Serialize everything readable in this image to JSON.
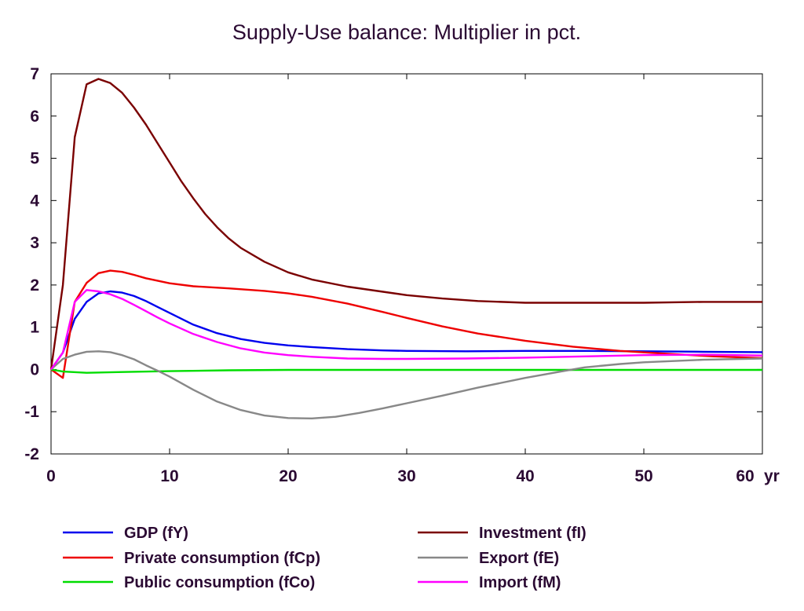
{
  "chart_data": {
    "type": "line",
    "title": "Supply-Use balance: Multiplier in pct.",
    "xlabel": "",
    "ylabel": "",
    "x_unit_label": "yr",
    "xlim": [
      0,
      60
    ],
    "ylim": [
      -2,
      7
    ],
    "x_ticks": [
      0,
      10,
      20,
      30,
      40,
      50,
      60
    ],
    "y_ticks": [
      -2,
      -1,
      0,
      1,
      2,
      3,
      4,
      5,
      6,
      7
    ],
    "grid": false,
    "legend_position": "bottom",
    "series": [
      {
        "name": "GDP (fY)",
        "color": "#0000ee",
        "points": [
          [
            0,
            0
          ],
          [
            1,
            0.4
          ],
          [
            2,
            1.2
          ],
          [
            3,
            1.6
          ],
          [
            4,
            1.8
          ],
          [
            5,
            1.85
          ],
          [
            6,
            1.82
          ],
          [
            7,
            1.74
          ],
          [
            8,
            1.62
          ],
          [
            9,
            1.48
          ],
          [
            10,
            1.34
          ],
          [
            12,
            1.06
          ],
          [
            14,
            0.86
          ],
          [
            16,
            0.72
          ],
          [
            18,
            0.63
          ],
          [
            20,
            0.57
          ],
          [
            22,
            0.53
          ],
          [
            25,
            0.48
          ],
          [
            28,
            0.45
          ],
          [
            30,
            0.44
          ],
          [
            35,
            0.43
          ],
          [
            40,
            0.44
          ],
          [
            45,
            0.44
          ],
          [
            50,
            0.43
          ],
          [
            55,
            0.42
          ],
          [
            60,
            0.41
          ]
        ]
      },
      {
        "name": "Private consumption (fCp)",
        "color": "#ee0000",
        "points": [
          [
            0,
            0
          ],
          [
            1,
            -0.2
          ],
          [
            2,
            1.6
          ],
          [
            3,
            2.05
          ],
          [
            4,
            2.28
          ],
          [
            5,
            2.34
          ],
          [
            6,
            2.31
          ],
          [
            7,
            2.24
          ],
          [
            8,
            2.16
          ],
          [
            10,
            2.04
          ],
          [
            12,
            1.97
          ],
          [
            15,
            1.92
          ],
          [
            18,
            1.86
          ],
          [
            20,
            1.8
          ],
          [
            22,
            1.72
          ],
          [
            25,
            1.56
          ],
          [
            28,
            1.36
          ],
          [
            30,
            1.22
          ],
          [
            33,
            1.02
          ],
          [
            36,
            0.85
          ],
          [
            40,
            0.68
          ],
          [
            44,
            0.54
          ],
          [
            48,
            0.44
          ],
          [
            52,
            0.37
          ],
          [
            56,
            0.31
          ],
          [
            60,
            0.27
          ]
        ]
      },
      {
        "name": "Public consumption (fCo)",
        "color": "#00dd00",
        "points": [
          [
            0,
            0
          ],
          [
            1,
            -0.05
          ],
          [
            3,
            -0.08
          ],
          [
            6,
            -0.06
          ],
          [
            10,
            -0.04
          ],
          [
            15,
            -0.02
          ],
          [
            20,
            -0.01
          ],
          [
            30,
            -0.01
          ],
          [
            40,
            -0.01
          ],
          [
            50,
            -0.01
          ],
          [
            60,
            -0.01
          ]
        ]
      },
      {
        "name": "Investment (fI)",
        "color": "#7a0000",
        "points": [
          [
            0,
            0
          ],
          [
            1,
            2.0
          ],
          [
            2,
            5.5
          ],
          [
            3,
            6.75
          ],
          [
            4,
            6.88
          ],
          [
            5,
            6.78
          ],
          [
            6,
            6.55
          ],
          [
            7,
            6.2
          ],
          [
            8,
            5.8
          ],
          [
            9,
            5.35
          ],
          [
            10,
            4.9
          ],
          [
            11,
            4.45
          ],
          [
            12,
            4.05
          ],
          [
            13,
            3.68
          ],
          [
            14,
            3.37
          ],
          [
            15,
            3.1
          ],
          [
            16,
            2.88
          ],
          [
            18,
            2.55
          ],
          [
            20,
            2.3
          ],
          [
            22,
            2.13
          ],
          [
            25,
            1.96
          ],
          [
            28,
            1.84
          ],
          [
            30,
            1.76
          ],
          [
            33,
            1.68
          ],
          [
            36,
            1.62
          ],
          [
            40,
            1.58
          ],
          [
            45,
            1.58
          ],
          [
            50,
            1.58
          ],
          [
            55,
            1.6
          ],
          [
            60,
            1.6
          ]
        ]
      },
      {
        "name": "Export (fE)",
        "color": "#888888",
        "points": [
          [
            0,
            0
          ],
          [
            1,
            0.25
          ],
          [
            2,
            0.35
          ],
          [
            3,
            0.42
          ],
          [
            4,
            0.43
          ],
          [
            5,
            0.41
          ],
          [
            6,
            0.34
          ],
          [
            7,
            0.24
          ],
          [
            8,
            0.1
          ],
          [
            9,
            -0.03
          ],
          [
            10,
            -0.17
          ],
          [
            12,
            -0.48
          ],
          [
            14,
            -0.76
          ],
          [
            16,
            -0.96
          ],
          [
            18,
            -1.09
          ],
          [
            20,
            -1.15
          ],
          [
            22,
            -1.16
          ],
          [
            24,
            -1.12
          ],
          [
            26,
            -1.03
          ],
          [
            28,
            -0.92
          ],
          [
            30,
            -0.8
          ],
          [
            33,
            -0.62
          ],
          [
            36,
            -0.43
          ],
          [
            40,
            -0.2
          ],
          [
            43,
            -0.05
          ],
          [
            45,
            0.05
          ],
          [
            48,
            0.13
          ],
          [
            50,
            0.17
          ],
          [
            55,
            0.23
          ],
          [
            60,
            0.26
          ]
        ]
      },
      {
        "name": "Import (fM)",
        "color": "#ff00ff",
        "points": [
          [
            0,
            0
          ],
          [
            1,
            0.4
          ],
          [
            2,
            1.6
          ],
          [
            3,
            1.88
          ],
          [
            4,
            1.85
          ],
          [
            5,
            1.78
          ],
          [
            6,
            1.67
          ],
          [
            7,
            1.53
          ],
          [
            8,
            1.38
          ],
          [
            9,
            1.23
          ],
          [
            10,
            1.09
          ],
          [
            12,
            0.84
          ],
          [
            14,
            0.65
          ],
          [
            16,
            0.5
          ],
          [
            18,
            0.4
          ],
          [
            20,
            0.34
          ],
          [
            22,
            0.3
          ],
          [
            25,
            0.26
          ],
          [
            28,
            0.25
          ],
          [
            30,
            0.25
          ],
          [
            35,
            0.26
          ],
          [
            40,
            0.28
          ],
          [
            45,
            0.31
          ],
          [
            50,
            0.34
          ],
          [
            55,
            0.35
          ],
          [
            60,
            0.33
          ]
        ]
      }
    ]
  }
}
